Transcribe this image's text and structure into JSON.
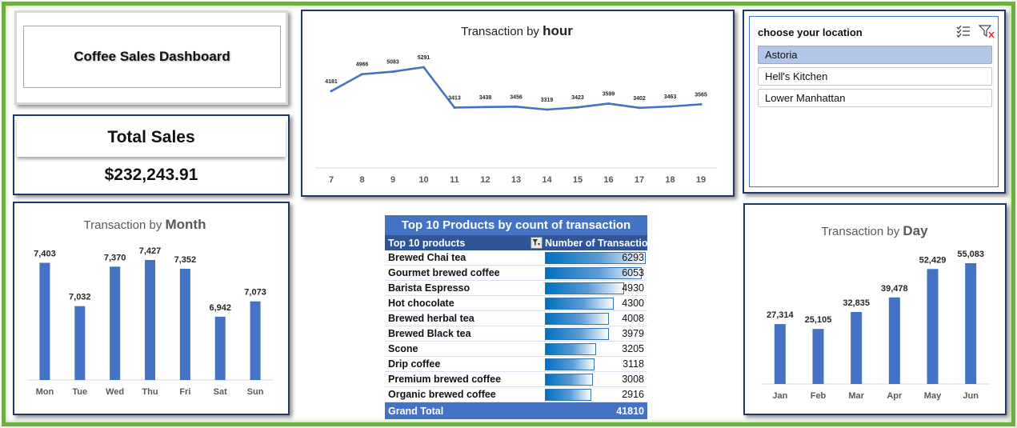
{
  "dashboard": {
    "title": "Coffee Sales Dashboard"
  },
  "total_sales": {
    "label": "Total Sales",
    "value": "$232,243.91"
  },
  "slicer": {
    "header": "choose your location",
    "items": [
      {
        "label": "Astoria",
        "selected": true
      },
      {
        "label": "Hell's Kitchen",
        "selected": false
      },
      {
        "label": "Lower Manhattan",
        "selected": false
      }
    ]
  },
  "pivot": {
    "title": "Top 10 Products by count of transaction",
    "col1_header": "Top 10 products",
    "col2_header": "Number of Transactions",
    "rows": [
      {
        "name": "Brewed Chai tea",
        "value": 6293
      },
      {
        "name": "Gourmet brewed coffee",
        "value": 6053
      },
      {
        "name": "Barista Espresso",
        "value": 4930
      },
      {
        "name": "Hot chocolate",
        "value": 4300
      },
      {
        "name": "Brewed herbal tea",
        "value": 4008
      },
      {
        "name": "Brewed Black tea",
        "value": 3979
      },
      {
        "name": "Scone",
        "value": 3205
      },
      {
        "name": "Drip coffee",
        "value": 3118
      },
      {
        "name": "Premium brewed coffee",
        "value": 3008
      },
      {
        "name": "Organic brewed coffee",
        "value": 2916
      }
    ],
    "total_label": "Grand Total",
    "total_value": "41810"
  },
  "chart_data": [
    {
      "id": "hour",
      "type": "line",
      "title_prefix": "Transaction by ",
      "title_bold": "hour",
      "categories": [
        "7",
        "8",
        "9",
        "10",
        "11",
        "12",
        "13",
        "14",
        "15",
        "16",
        "17",
        "18",
        "19"
      ],
      "values": [
        4181,
        4966,
        5083,
        5291,
        3413,
        3438,
        3456,
        3319,
        3423,
        3599,
        3402,
        3463,
        3565
      ],
      "labels": [
        "4181",
        "4966",
        "5083",
        "5291",
        "3413",
        "3438",
        "3456",
        "3319",
        "3423",
        "3599",
        "3402",
        "3463",
        "3565"
      ],
      "color": "#4472c4"
    },
    {
      "id": "month",
      "type": "bar",
      "title_prefix": "Transaction by ",
      "title_bold": "Month",
      "categories": [
        "Mon",
        "Tue",
        "Wed",
        "Thu",
        "Fri",
        "Sat",
        "Sun"
      ],
      "values": [
        7403,
        7032,
        7370,
        7427,
        7352,
        6942,
        7073
      ],
      "labels": [
        "7,403",
        "7,032",
        "7,370",
        "7,427",
        "7,352",
        "6,942",
        "7,073"
      ],
      "color": "#4472c4"
    },
    {
      "id": "day",
      "type": "bar",
      "title_prefix": "Transaction by ",
      "title_bold": "Day",
      "categories": [
        "Jan",
        "Feb",
        "Mar",
        "Apr",
        "May",
        "Jun"
      ],
      "values": [
        27314,
        25105,
        32835,
        39478,
        52429,
        55083
      ],
      "labels": [
        "27,314",
        "25,105",
        "32,835",
        "39,478",
        "52,429",
        "55,083"
      ],
      "color": "#4472c4"
    }
  ]
}
